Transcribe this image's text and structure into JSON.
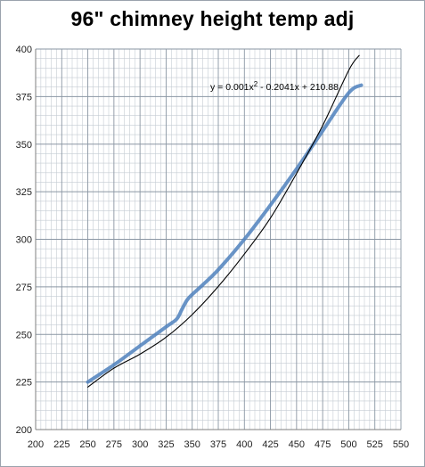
{
  "chart_data": {
    "type": "line",
    "title": "96\" chimney height temp adj",
    "xlabel": "",
    "ylabel": "",
    "xlim": [
      200,
      550
    ],
    "ylim": [
      200,
      400
    ],
    "x_ticks": [
      200,
      225,
      250,
      275,
      300,
      325,
      350,
      375,
      400,
      425,
      450,
      475,
      500,
      525,
      550
    ],
    "y_ticks": [
      200,
      225,
      250,
      275,
      300,
      325,
      350,
      375,
      400
    ],
    "grid": true,
    "legend": "none",
    "series": [
      {
        "style": "data",
        "color": "#4f81bd",
        "x": [
          250,
          275,
          300,
          325,
          335,
          340,
          345,
          350,
          360,
          375,
          400,
          425,
          450,
          475,
          500,
          512
        ],
        "y": [
          225,
          234,
          244,
          254,
          258,
          263,
          268,
          271,
          276,
          284,
          300,
          318,
          337,
          357,
          377,
          381
        ]
      },
      {
        "style": "trendline",
        "color": "#000000",
        "x": [
          250,
          275,
          300,
          325,
          350,
          375,
          400,
          425,
          450,
          475,
          500,
          510
        ],
        "y": [
          222.36,
          232.26,
          239.65,
          248.55,
          260.44,
          275.22,
          292.24,
          311.19,
          334.62,
          359.76,
          388.83,
          396.61
        ]
      }
    ],
    "annotation": {
      "trendline_equation_prefix": "y = 0.001x",
      "trendline_equation_exponent": "2",
      "trendline_equation_suffix": " - 0.2041x + 210.88"
    }
  },
  "colors": {
    "grid_major": "#8a96a3",
    "grid_minor": "#c5ccd3",
    "axis": "#7f7f7f",
    "series": "#4f81bd",
    "trendline": "#000000"
  }
}
